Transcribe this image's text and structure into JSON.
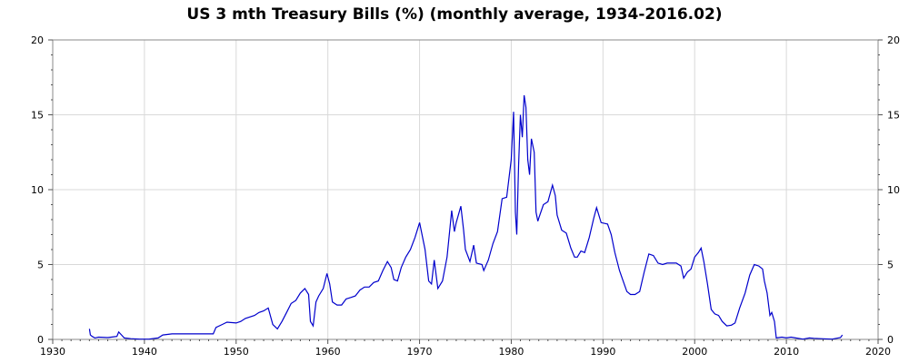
{
  "chart_data": {
    "type": "line",
    "title": "US 3 mth Treasury Bills (%) (monthly average, 1934-2016.02)",
    "xlabel": "",
    "ylabel": "",
    "xlim": [
      1930,
      2020
    ],
    "ylim": [
      0,
      20
    ],
    "x_ticks": [
      1930,
      1940,
      1950,
      1960,
      1970,
      1980,
      1990,
      2000,
      2010,
      2020
    ],
    "y_ticks": [
      0,
      5,
      10,
      15,
      20
    ],
    "y_axis_right": true,
    "grid": true,
    "legend": "none",
    "colors": {
      "line": "#0000cc",
      "grid": "#d9d9d9",
      "axis": "#888888"
    },
    "series": [
      {
        "values": [
          [
            1934.0,
            0.7
          ],
          [
            1934.1,
            0.3
          ],
          [
            1934.3,
            0.2
          ],
          [
            1934.6,
            0.1
          ],
          [
            1935.0,
            0.15
          ],
          [
            1936.0,
            0.12
          ],
          [
            1937.0,
            0.2
          ],
          [
            1937.2,
            0.5
          ],
          [
            1937.5,
            0.3
          ],
          [
            1937.8,
            0.1
          ],
          [
            1938.5,
            0.05
          ],
          [
            1939.5,
            0.02
          ],
          [
            1940.5,
            0.02
          ],
          [
            1941.5,
            0.1
          ],
          [
            1942.0,
            0.3
          ],
          [
            1943.0,
            0.37
          ],
          [
            1946.0,
            0.37
          ],
          [
            1947.5,
            0.37
          ],
          [
            1947.8,
            0.8
          ],
          [
            1948.5,
            1.0
          ],
          [
            1949.0,
            1.15
          ],
          [
            1950.0,
            1.1
          ],
          [
            1950.5,
            1.2
          ],
          [
            1951.0,
            1.4
          ],
          [
            1952.0,
            1.6
          ],
          [
            1952.5,
            1.8
          ],
          [
            1953.0,
            1.9
          ],
          [
            1953.5,
            2.1
          ],
          [
            1954.0,
            1.0
          ],
          [
            1954.5,
            0.7
          ],
          [
            1955.0,
            1.2
          ],
          [
            1955.5,
            1.8
          ],
          [
            1956.0,
            2.4
          ],
          [
            1956.5,
            2.6
          ],
          [
            1957.0,
            3.1
          ],
          [
            1957.5,
            3.4
          ],
          [
            1957.9,
            3.0
          ],
          [
            1958.1,
            1.2
          ],
          [
            1958.4,
            0.9
          ],
          [
            1958.7,
            2.5
          ],
          [
            1959.0,
            2.9
          ],
          [
            1959.5,
            3.4
          ],
          [
            1959.9,
            4.4
          ],
          [
            1960.2,
            3.7
          ],
          [
            1960.5,
            2.5
          ],
          [
            1961.0,
            2.3
          ],
          [
            1961.5,
            2.3
          ],
          [
            1962.0,
            2.7
          ],
          [
            1962.5,
            2.8
          ],
          [
            1963.0,
            2.9
          ],
          [
            1963.5,
            3.3
          ],
          [
            1964.0,
            3.5
          ],
          [
            1964.5,
            3.5
          ],
          [
            1965.0,
            3.8
          ],
          [
            1965.5,
            3.9
          ],
          [
            1966.0,
            4.6
          ],
          [
            1966.5,
            5.2
          ],
          [
            1966.9,
            4.8
          ],
          [
            1967.2,
            4.0
          ],
          [
            1967.6,
            3.9
          ],
          [
            1968.0,
            4.8
          ],
          [
            1968.5,
            5.5
          ],
          [
            1969.0,
            6.0
          ],
          [
            1969.5,
            6.8
          ],
          [
            1970.0,
            7.8
          ],
          [
            1970.3,
            6.9
          ],
          [
            1970.6,
            6.0
          ],
          [
            1971.0,
            3.9
          ],
          [
            1971.3,
            3.7
          ],
          [
            1971.6,
            5.3
          ],
          [
            1972.0,
            3.4
          ],
          [
            1972.5,
            3.9
          ],
          [
            1973.0,
            5.5
          ],
          [
            1973.5,
            8.6
          ],
          [
            1973.8,
            7.2
          ],
          [
            1974.0,
            7.8
          ],
          [
            1974.5,
            8.9
          ],
          [
            1974.8,
            7.3
          ],
          [
            1975.0,
            6.0
          ],
          [
            1975.5,
            5.2
          ],
          [
            1975.9,
            6.3
          ],
          [
            1976.2,
            5.1
          ],
          [
            1976.8,
            5.0
          ],
          [
            1977.0,
            4.6
          ],
          [
            1977.5,
            5.3
          ],
          [
            1978.0,
            6.4
          ],
          [
            1978.5,
            7.2
          ],
          [
            1979.0,
            9.4
          ],
          [
            1979.5,
            9.5
          ],
          [
            1980.0,
            12.0
          ],
          [
            1980.25,
            15.2
          ],
          [
            1980.45,
            8.5
          ],
          [
            1980.6,
            7.0
          ],
          [
            1980.8,
            11.6
          ],
          [
            1981.0,
            15.0
          ],
          [
            1981.2,
            13.5
          ],
          [
            1981.4,
            16.3
          ],
          [
            1981.6,
            15.5
          ],
          [
            1981.8,
            12.0
          ],
          [
            1982.0,
            11.0
          ],
          [
            1982.2,
            13.4
          ],
          [
            1982.5,
            12.5
          ],
          [
            1982.7,
            8.5
          ],
          [
            1982.9,
            7.9
          ],
          [
            1983.0,
            8.1
          ],
          [
            1983.5,
            9.0
          ],
          [
            1984.0,
            9.2
          ],
          [
            1984.5,
            10.3
          ],
          [
            1984.8,
            9.6
          ],
          [
            1985.0,
            8.3
          ],
          [
            1985.5,
            7.3
          ],
          [
            1986.0,
            7.1
          ],
          [
            1986.5,
            6.1
          ],
          [
            1986.9,
            5.5
          ],
          [
            1987.2,
            5.5
          ],
          [
            1987.6,
            5.9
          ],
          [
            1988.0,
            5.8
          ],
          [
            1988.5,
            6.8
          ],
          [
            1989.0,
            8.1
          ],
          [
            1989.3,
            8.8
          ],
          [
            1989.8,
            7.8
          ],
          [
            1990.5,
            7.7
          ],
          [
            1990.9,
            7.0
          ],
          [
            1991.3,
            5.8
          ],
          [
            1991.8,
            4.6
          ],
          [
            1992.2,
            3.9
          ],
          [
            1992.6,
            3.2
          ],
          [
            1993.0,
            3.0
          ],
          [
            1993.5,
            3.0
          ],
          [
            1994.0,
            3.2
          ],
          [
            1994.5,
            4.5
          ],
          [
            1995.0,
            5.7
          ],
          [
            1995.5,
            5.6
          ],
          [
            1996.0,
            5.1
          ],
          [
            1996.5,
            5.0
          ],
          [
            1997.0,
            5.1
          ],
          [
            1997.5,
            5.1
          ],
          [
            1998.0,
            5.1
          ],
          [
            1998.5,
            4.9
          ],
          [
            1998.8,
            4.1
          ],
          [
            1999.2,
            4.5
          ],
          [
            1999.6,
            4.7
          ],
          [
            2000.0,
            5.5
          ],
          [
            2000.4,
            5.8
          ],
          [
            2000.7,
            6.1
          ],
          [
            2001.0,
            5.2
          ],
          [
            2001.4,
            3.7
          ],
          [
            2001.8,
            2.0
          ],
          [
            2002.2,
            1.7
          ],
          [
            2002.6,
            1.6
          ],
          [
            2003.0,
            1.2
          ],
          [
            2003.5,
            0.9
          ],
          [
            2004.0,
            0.95
          ],
          [
            2004.4,
            1.1
          ],
          [
            2004.9,
            2.1
          ],
          [
            2005.5,
            3.1
          ],
          [
            2006.0,
            4.3
          ],
          [
            2006.5,
            5.0
          ],
          [
            2007.0,
            4.9
          ],
          [
            2007.4,
            4.7
          ],
          [
            2007.6,
            3.9
          ],
          [
            2007.9,
            3.1
          ],
          [
            2008.2,
            1.6
          ],
          [
            2008.4,
            1.8
          ],
          [
            2008.7,
            1.2
          ],
          [
            2008.9,
            0.1
          ],
          [
            2009.5,
            0.15
          ],
          [
            2010.0,
            0.1
          ],
          [
            2010.5,
            0.15
          ],
          [
            2011.0,
            0.1
          ],
          [
            2011.8,
            0.02
          ],
          [
            2012.5,
            0.1
          ],
          [
            2013.0,
            0.07
          ],
          [
            2014.0,
            0.04
          ],
          [
            2015.0,
            0.02
          ],
          [
            2015.9,
            0.12
          ],
          [
            2016.1,
            0.3
          ]
        ]
      }
    ]
  }
}
